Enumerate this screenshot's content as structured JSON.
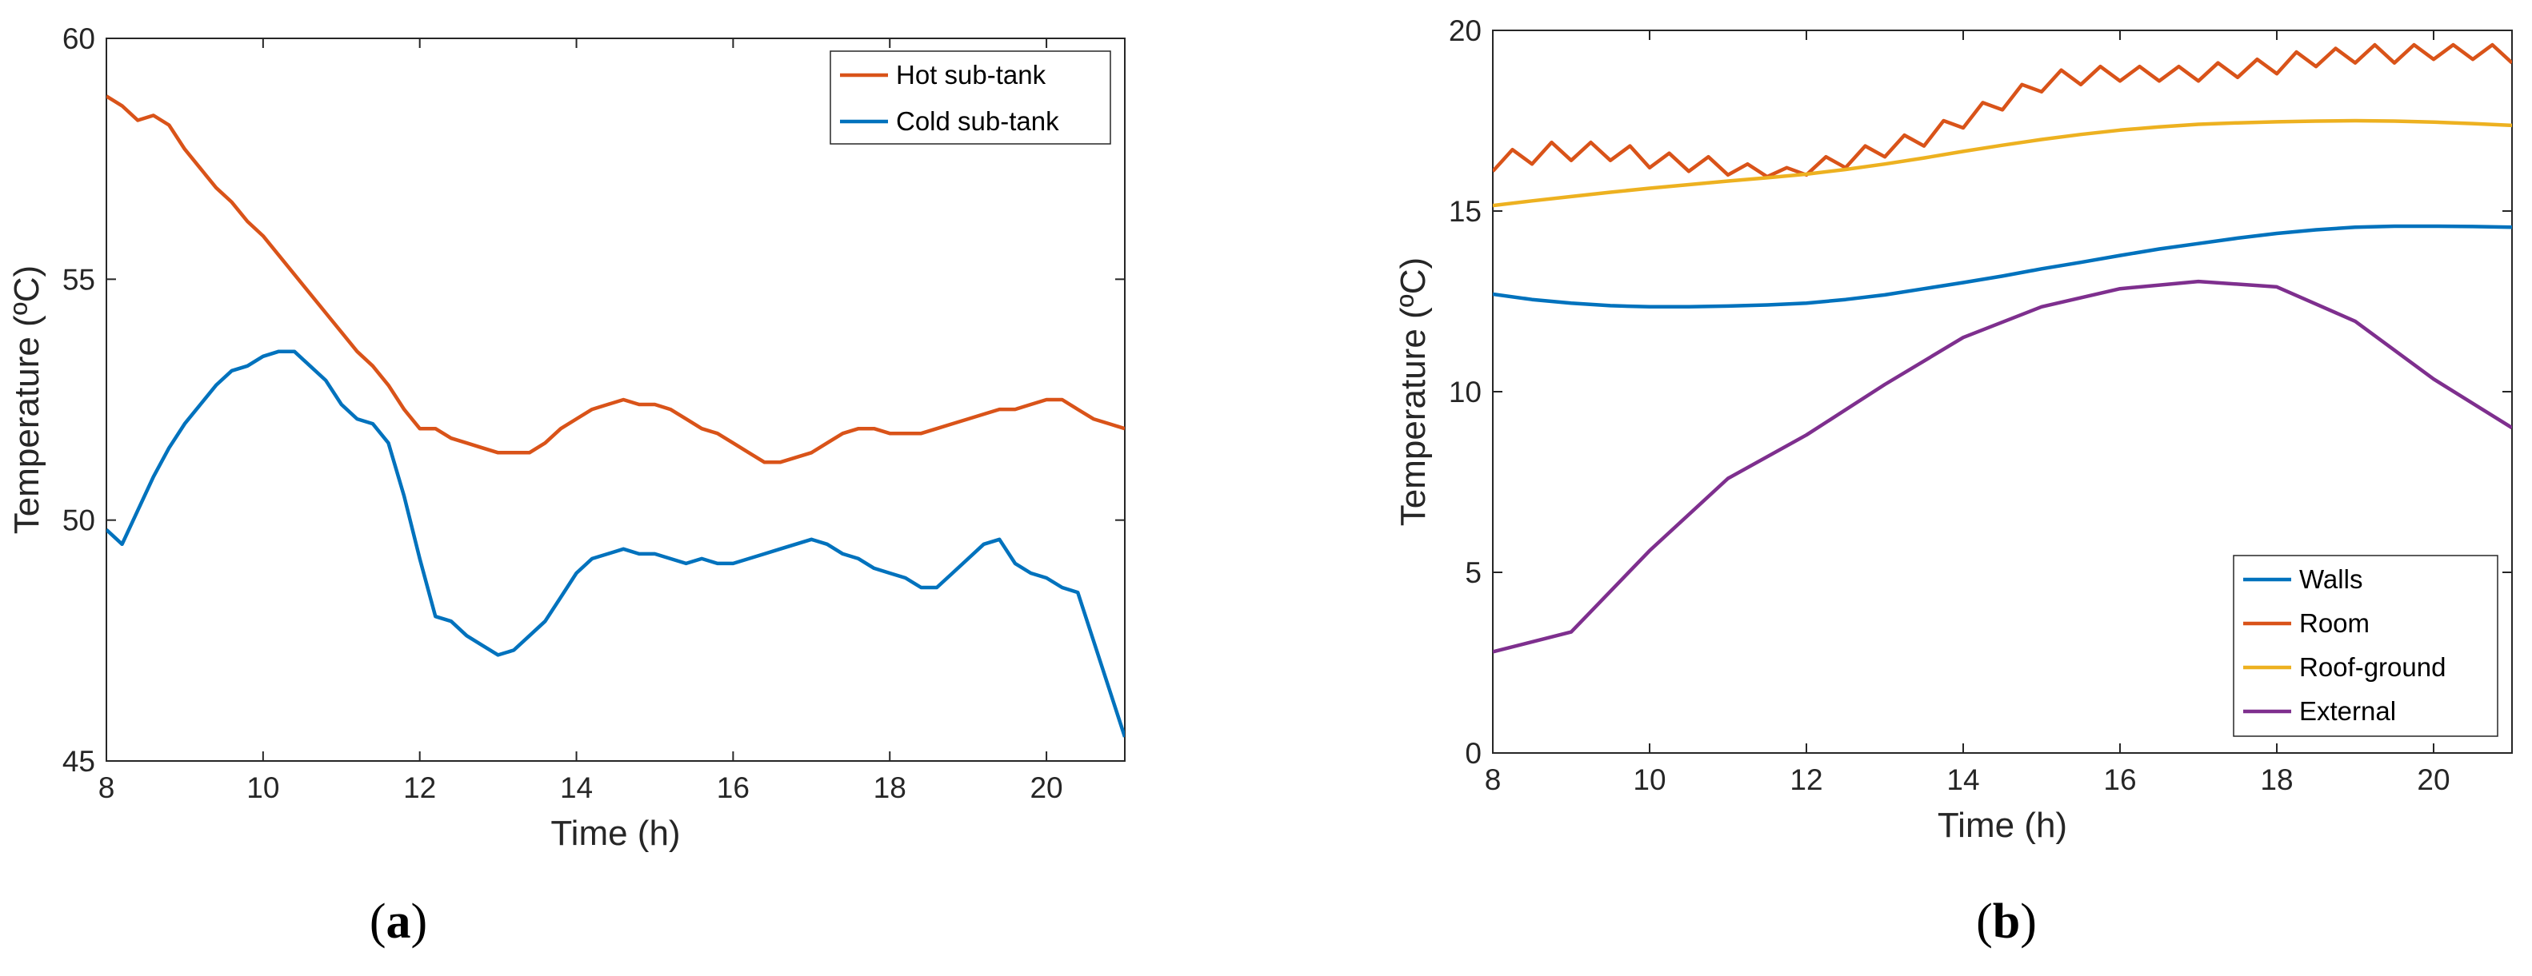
{
  "figure": {
    "caption_a": "a",
    "caption_b": "b"
  },
  "colors": {
    "orange": "#D95319",
    "blue": "#0072BD",
    "yellow": "#EDB120",
    "purple": "#7E2F8E",
    "axis": "#262626"
  },
  "chart_data": [
    {
      "type": "line",
      "panel": "a",
      "xlabel": "Time (h)",
      "ylabel": "Temperature (ºC)",
      "xlim": [
        8,
        21
      ],
      "ylim": [
        45,
        60
      ],
      "xticks": [
        8,
        10,
        12,
        14,
        16,
        18,
        20
      ],
      "yticks": [
        45,
        50,
        55,
        60
      ],
      "grid": false,
      "legend_position": "top-right",
      "series": [
        {
          "name": "Hot sub-tank",
          "color": "#D95319",
          "x": [
            8,
            8.2,
            8.4,
            8.6,
            8.8,
            9,
            9.2,
            9.4,
            9.6,
            9.8,
            10,
            10.2,
            10.4,
            10.6,
            10.8,
            11,
            11.2,
            11.4,
            11.6,
            11.8,
            12,
            12.2,
            12.4,
            12.6,
            12.8,
            13,
            13.2,
            13.4,
            13.6,
            13.8,
            14,
            14.2,
            14.4,
            14.6,
            14.8,
            15,
            15.2,
            15.4,
            15.6,
            15.8,
            16,
            16.2,
            16.4,
            16.6,
            16.8,
            17,
            17.2,
            17.4,
            17.6,
            17.8,
            18,
            18.2,
            18.4,
            18.6,
            18.8,
            19,
            19.2,
            19.4,
            19.6,
            19.8,
            20,
            20.2,
            20.4,
            20.6,
            20.8,
            21
          ],
          "y": [
            58.8,
            58.6,
            58.3,
            58.4,
            58.2,
            57.7,
            57.3,
            56.9,
            56.6,
            56.2,
            55.9,
            55.5,
            55.1,
            54.7,
            54.3,
            53.9,
            53.5,
            53.2,
            52.8,
            52.3,
            51.9,
            51.9,
            51.7,
            51.6,
            51.5,
            51.4,
            51.4,
            51.4,
            51.6,
            51.9,
            52.1,
            52.3,
            52.4,
            52.5,
            52.4,
            52.4,
            52.3,
            52.1,
            51.9,
            51.8,
            51.6,
            51.4,
            51.2,
            51.2,
            51.3,
            51.4,
            51.6,
            51.8,
            51.9,
            51.9,
            51.8,
            51.8,
            51.8,
            51.9,
            52,
            52.1,
            52.2,
            52.3,
            52.3,
            52.4,
            52.5,
            52.5,
            52.3,
            52.1,
            52,
            51.9
          ]
        },
        {
          "name": "Cold sub-tank",
          "color": "#0072BD",
          "x": [
            8,
            8.2,
            8.4,
            8.6,
            8.8,
            9,
            9.2,
            9.4,
            9.6,
            9.8,
            10,
            10.2,
            10.4,
            10.6,
            10.8,
            11,
            11.2,
            11.4,
            11.6,
            11.8,
            12,
            12.2,
            12.4,
            12.6,
            12.8,
            13,
            13.2,
            13.4,
            13.6,
            13.8,
            14,
            14.2,
            14.4,
            14.6,
            14.8,
            15,
            15.2,
            15.4,
            15.6,
            15.8,
            16,
            16.2,
            16.4,
            16.6,
            16.8,
            17,
            17.2,
            17.4,
            17.6,
            17.8,
            18,
            18.2,
            18.4,
            18.6,
            18.8,
            19,
            19.2,
            19.4,
            19.6,
            19.8,
            20,
            20.2,
            20.4,
            20.6,
            20.8,
            21
          ],
          "y": [
            49.8,
            49.5,
            50.2,
            50.9,
            51.5,
            52,
            52.4,
            52.8,
            53.1,
            53.2,
            53.4,
            53.5,
            53.5,
            53.2,
            52.9,
            52.4,
            52.1,
            52,
            51.6,
            50.5,
            49.2,
            48,
            47.9,
            47.6,
            47.4,
            47.2,
            47.3,
            47.6,
            47.9,
            48.4,
            48.9,
            49.2,
            49.3,
            49.4,
            49.3,
            49.3,
            49.2,
            49.1,
            49.2,
            49.1,
            49.1,
            49.2,
            49.3,
            49.4,
            49.5,
            49.6,
            49.5,
            49.3,
            49.2,
            49,
            48.9,
            48.8,
            48.6,
            48.6,
            48.9,
            49.2,
            49.5,
            49.6,
            49.1,
            48.9,
            48.8,
            48.6,
            48.5,
            47.5,
            46.5,
            45.5
          ]
        }
      ]
    },
    {
      "type": "line",
      "panel": "b",
      "xlabel": "Time (h)",
      "ylabel": "Temperature (ºC)",
      "xlim": [
        8,
        21
      ],
      "ylim": [
        0,
        20
      ],
      "xticks": [
        8,
        10,
        12,
        14,
        16,
        18,
        20
      ],
      "yticks": [
        0,
        5,
        10,
        15,
        20
      ],
      "grid": false,
      "legend_position": "bottom-right",
      "series": [
        {
          "name": "Walls",
          "color": "#0072BD",
          "x": [
            8,
            8.5,
            9,
            9.5,
            10,
            10.5,
            11,
            11.5,
            12,
            12.5,
            13,
            13.5,
            14,
            14.5,
            15,
            15.5,
            16,
            16.5,
            17,
            17.5,
            18,
            18.5,
            19,
            19.5,
            20,
            20.5,
            21
          ],
          "y": [
            12.7,
            12.55,
            12.45,
            12.38,
            12.35,
            12.35,
            12.37,
            12.4,
            12.45,
            12.55,
            12.68,
            12.85,
            13.02,
            13.2,
            13.4,
            13.58,
            13.77,
            13.95,
            14.1,
            14.25,
            14.38,
            14.48,
            14.55,
            14.58,
            14.58,
            14.57,
            14.55
          ]
        },
        {
          "name": "Room",
          "color": "#D95319",
          "x": [
            8,
            8.25,
            8.5,
            8.75,
            9,
            9.25,
            9.5,
            9.75,
            10,
            10.25,
            10.5,
            10.75,
            11,
            11.25,
            11.5,
            11.75,
            12,
            12.25,
            12.5,
            12.75,
            13,
            13.25,
            13.5,
            13.75,
            14,
            14.25,
            14.5,
            14.75,
            15,
            15.25,
            15.5,
            15.75,
            16,
            16.25,
            16.5,
            16.75,
            17,
            17.25,
            17.5,
            17.75,
            18,
            18.25,
            18.5,
            18.75,
            19,
            19.25,
            19.5,
            19.75,
            20,
            20.25,
            20.5,
            20.75,
            21
          ],
          "y": [
            16.1,
            16.7,
            16.3,
            16.9,
            16.4,
            16.9,
            16.4,
            16.8,
            16.2,
            16.6,
            16.1,
            16.5,
            16,
            16.3,
            15.95,
            16.2,
            16,
            16.5,
            16.2,
            16.8,
            16.5,
            17.1,
            16.8,
            17.5,
            17.3,
            18,
            17.8,
            18.5,
            18.3,
            18.9,
            18.5,
            19,
            18.6,
            19,
            18.6,
            19,
            18.6,
            19.1,
            18.7,
            19.2,
            18.8,
            19.4,
            19,
            19.5,
            19.1,
            19.6,
            19.1,
            19.6,
            19.2,
            19.6,
            19.2,
            19.6,
            19.1
          ]
        },
        {
          "name": "Roof-ground",
          "color": "#EDB120",
          "x": [
            8,
            8.5,
            9,
            9.5,
            10,
            10.5,
            11,
            11.5,
            12,
            12.5,
            13,
            13.5,
            14,
            14.5,
            15,
            15.5,
            16,
            16.5,
            17,
            17.5,
            18,
            18.5,
            19,
            19.5,
            20,
            20.5,
            21
          ],
          "y": [
            15.15,
            15.28,
            15.4,
            15.52,
            15.63,
            15.73,
            15.83,
            15.92,
            16.02,
            16.15,
            16.3,
            16.47,
            16.65,
            16.82,
            16.98,
            17.12,
            17.24,
            17.33,
            17.4,
            17.44,
            17.47,
            17.49,
            17.5,
            17.49,
            17.46,
            17.42,
            17.37
          ]
        },
        {
          "name": "External",
          "color": "#7E2F8E",
          "x": [
            8,
            9,
            10,
            11,
            12,
            13,
            14,
            15,
            16,
            17,
            18,
            19,
            20,
            21
          ],
          "y": [
            2.8,
            3.35,
            5.6,
            7.6,
            8.8,
            10.2,
            11.5,
            12.35,
            12.85,
            13.05,
            12.9,
            11.95,
            10.35,
            9
          ]
        }
      ]
    }
  ]
}
